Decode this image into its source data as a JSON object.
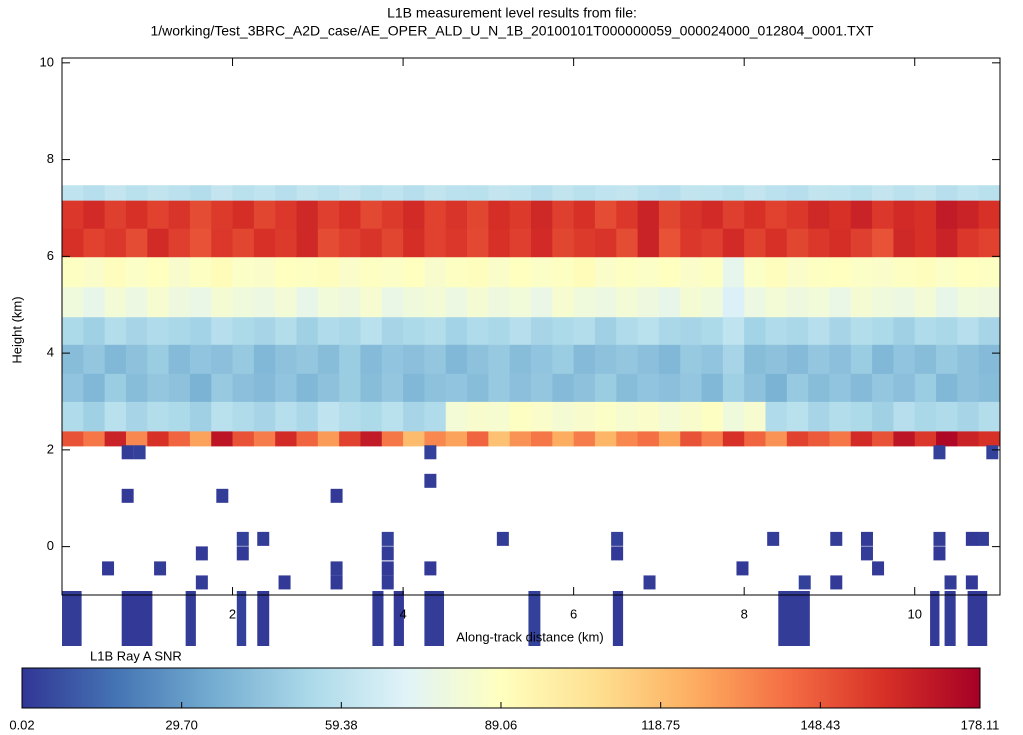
{
  "chart_data": {
    "type": "heatmap",
    "title": "L1B measurement level results from file:",
    "subtitle": "1/working/Test_3BRC_A2D_case/AE_OPER_ALD_U_N_1B_20100101T000000059_000024000_012804_0001.TXT",
    "xlabel": "Along-track distance (km)",
    "ylabel": "Height (km)",
    "xlim": [
      0,
      11
    ],
    "ylim": [
      -1,
      10.1
    ],
    "xticks": [
      2,
      4,
      6,
      8,
      10
    ],
    "yticks": [
      0,
      2,
      4,
      6,
      8,
      10
    ],
    "x": [
      0,
      0.25,
      0.5,
      0.75,
      1,
      1.25,
      1.5,
      1.75,
      2,
      2.25,
      2.5,
      2.75,
      3,
      3.25,
      3.5,
      3.75,
      4,
      4.25,
      4.5,
      4.75,
      5,
      5.25,
      5.5,
      5.75,
      6,
      6.25,
      6.5,
      6.75,
      7,
      7.25,
      7.5,
      7.75,
      8,
      8.25,
      8.5,
      8.75,
      9,
      9.25,
      9.5,
      9.75,
      10,
      10.25,
      10.5,
      10.75,
      11
    ],
    "y": [
      2.08,
      2.39,
      3.0,
      3.58,
      4.18,
      4.75,
      5.37,
      5.99,
      6.58,
      7.16,
      7.47
    ],
    "z": [
      [
        150,
        140,
        165,
        135,
        160,
        145,
        128,
        170,
        150,
        138,
        162,
        145,
        130,
        155,
        168,
        140,
        120,
        135,
        128,
        145,
        118,
        132,
        140,
        125,
        138,
        122,
        135,
        142,
        128,
        150,
        138,
        160,
        145,
        132,
        155,
        148,
        140,
        162,
        150,
        170,
        158,
        175,
        165,
        160
      ],
      [
        55,
        50,
        58,
        52,
        56,
        54,
        50,
        58,
        55,
        52,
        57,
        53,
        60,
        56,
        54,
        58,
        52,
        55,
        82,
        85,
        84,
        88,
        86,
        83,
        85,
        87,
        84,
        86,
        82,
        85,
        88,
        80,
        84,
        55,
        58,
        52,
        56,
        54,
        50,
        57,
        53,
        55,
        52,
        56
      ],
      [
        45,
        40,
        48,
        42,
        46,
        44,
        38,
        47,
        43,
        41,
        45,
        40,
        44,
        48,
        42,
        46,
        40,
        44,
        45,
        42,
        47,
        43,
        46,
        41,
        44,
        48,
        42,
        45,
        43,
        46,
        40,
        50,
        44,
        38,
        47,
        42,
        45,
        41,
        46,
        43,
        48,
        40,
        44,
        42
      ],
      [
        42,
        46,
        40,
        44,
        48,
        41,
        45,
        43,
        47,
        40,
        44,
        46,
        42,
        48,
        41,
        45,
        43,
        46,
        40,
        44,
        47,
        42,
        45,
        48,
        41,
        44,
        46,
        43,
        40,
        47,
        45,
        52,
        42,
        44,
        41,
        46,
        43,
        48,
        40,
        45,
        42,
        47,
        44,
        41
      ],
      [
        54,
        50,
        56,
        52,
        55,
        53,
        51,
        57,
        54,
        52,
        56,
        50,
        55,
        53,
        58,
        52,
        54,
        56,
        51,
        55,
        53,
        57,
        52,
        54,
        56,
        50,
        55,
        58,
        53,
        52,
        54,
        60,
        51,
        55,
        53,
        57,
        52,
        56,
        54,
        50,
        55,
        53,
        57,
        52
      ],
      [
        80,
        76,
        82,
        78,
        84,
        79,
        77,
        83,
        80,
        78,
        82,
        76,
        81,
        79,
        84,
        77,
        80,
        82,
        78,
        83,
        79,
        81,
        77,
        84,
        80,
        78,
        82,
        79,
        76,
        83,
        80,
        70,
        78,
        82,
        79,
        81,
        77,
        83,
        80,
        78,
        82,
        76,
        80,
        79
      ],
      [
        88,
        86,
        90,
        87,
        89,
        85,
        88,
        91,
        87,
        86,
        89,
        88,
        90,
        86,
        88,
        87,
        89,
        85,
        88,
        90,
        86,
        89,
        87,
        88,
        91,
        86,
        88,
        87,
        89,
        86,
        88,
        75,
        87,
        90,
        86,
        88,
        89,
        87,
        86,
        88,
        90,
        87,
        89,
        88
      ],
      [
        160,
        155,
        158,
        152,
        162,
        156,
        150,
        158,
        154,
        160,
        157,
        163,
        152,
        156,
        159,
        154,
        161,
        155,
        158,
        153,
        160,
        156,
        162,
        154,
        157,
        159,
        152,
        165,
        150,
        158,
        156,
        162,
        155,
        160,
        154,
        158,
        161,
        156,
        150,
        163,
        160,
        165,
        158,
        155
      ],
      [
        158,
        162,
        156,
        160,
        155,
        159,
        152,
        157,
        161,
        154,
        158,
        163,
        156,
        160,
        153,
        157,
        162,
        155,
        159,
        154,
        161,
        157,
        163,
        156,
        160,
        152,
        158,
        165,
        154,
        159,
        162,
        156,
        160,
        155,
        158,
        163,
        160,
        165,
        158,
        162,
        160,
        168,
        165,
        160
      ],
      [
        60,
        57,
        62,
        58,
        61,
        59,
        56,
        62,
        58,
        60,
        57,
        61,
        59,
        62,
        58,
        60,
        57,
        61,
        59,
        58,
        62,
        60,
        57,
        61,
        58,
        60,
        62,
        59,
        57,
        61,
        60,
        58,
        62,
        59,
        57,
        61,
        60,
        58,
        62,
        59,
        61,
        57,
        60,
        58
      ]
    ],
    "cells": {
      "x": [
        0.77,
        0.91,
        0.77,
        1.88,
        3.22,
        4.32,
        4.32,
        0.54,
        1.15,
        1.64,
        1.64,
        2.12,
        2.12,
        2.36,
        2.61,
        3.22,
        3.22,
        3.82,
        3.82,
        3.82,
        3.82,
        4.32,
        5.17,
        6.51,
        6.51,
        6.89,
        7.98,
        8.34,
        8.71,
        9.08,
        9.08,
        9.44,
        9.44,
        9.57,
        10.29,
        10.29,
        10.29,
        10.42,
        10.67,
        10.8,
        10.91,
        10.67
      ],
      "y": [
        1.95,
        1.95,
        1.05,
        1.05,
        1.05,
        1.95,
        1.36,
        -0.45,
        -0.45,
        -0.14,
        -0.74,
        0.16,
        -0.14,
        0.16,
        -0.74,
        -0.45,
        -0.74,
        0.16,
        -0.14,
        -0.45,
        -0.74,
        -0.45,
        0.16,
        0.16,
        -0.14,
        -0.74,
        -0.45,
        0.16,
        -0.74,
        -0.74,
        0.16,
        0.16,
        -0.14,
        -0.45,
        1.95,
        0.16,
        -0.14,
        -0.74,
        0.16,
        0.16,
        1.95,
        -0.74
      ],
      "values": [
        2,
        3,
        1,
        2,
        1,
        3,
        2,
        1,
        2,
        1,
        2,
        3,
        1,
        2,
        1,
        2,
        1,
        3,
        2,
        1,
        2,
        1,
        2,
        3,
        1,
        2,
        1,
        2,
        3,
        1,
        2,
        1,
        2,
        1,
        3,
        2,
        1,
        2,
        1,
        2,
        3,
        1
      ]
    },
    "below_cells": {
      "x0": [
        0.0,
        0.7,
        1.45,
        2.05,
        2.29,
        3.64,
        3.89,
        4.25,
        5.47,
        6.46,
        8.4,
        10.18,
        10.35,
        10.62
      ],
      "x1": [
        0.23,
        1.06,
        1.57,
        2.16,
        2.43,
        3.77,
        4.01,
        4.48,
        5.61,
        6.58,
        8.77,
        10.29,
        10.48,
        10.85
      ],
      "values": [
        2,
        1,
        2,
        3,
        1,
        2,
        1,
        2,
        3,
        1,
        2,
        1,
        2,
        1
      ]
    },
    "colorbar_label": "L1B Ray A SNR",
    "clim": [
      0.02,
      178.11
    ],
    "cticks": [
      0.02,
      {
        "value": 29.7,
        "label": "29.70"
      },
      59.38,
      89.06,
      118.75,
      148.43,
      178.11
    ],
    "colormap": [
      "#313695",
      "#4575b4",
      "#74add1",
      "#abd9e9",
      "#e0f3f8",
      "#ffffbf",
      "#fee090",
      "#fdae61",
      "#f46d43",
      "#d73027",
      "#a50026"
    ]
  }
}
